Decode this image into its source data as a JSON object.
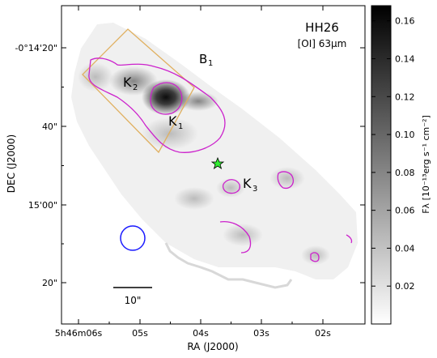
{
  "chart_data": {
    "type": "heatmap",
    "object_name": "HH26",
    "line_label": "[OI] 63μm",
    "xlabel": "RA (J2000)",
    "ylabel": "DEC (J2000)",
    "x_ticks": [
      "5h46m06s",
      "05s",
      "04s",
      "03s",
      "02s"
    ],
    "y_ticks": [
      "-0°14'20\"",
      "40\"",
      "15'00\"",
      "20\""
    ],
    "colorbar": {
      "label": "Fλ [10⁻¹³erg s⁻¹ cm⁻²]",
      "min": 0.0,
      "max": 0.168,
      "ticks": [
        "0.02",
        "0.04",
        "0.06",
        "0.08",
        "0.10",
        "0.12",
        "0.14",
        "0.16"
      ],
      "tick_values": [
        0.02,
        0.04,
        0.06,
        0.08,
        0.1,
        0.12,
        0.14,
        0.16
      ]
    },
    "peak_flux": 0.16,
    "annotations": {
      "knots": [
        {
          "letter": "K",
          "sub": "1"
        },
        {
          "letter": "K",
          "sub": "2"
        },
        {
          "letter": "K",
          "sub": "3"
        }
      ],
      "box_label": {
        "letter": "B",
        "sub": "1"
      },
      "scale_bar": "10\""
    },
    "colors": {
      "contour": "#cc22cc",
      "box": "#e0b060",
      "knot_label": "#1a1aff",
      "beam": "#1a1aff",
      "star": "#33ee33"
    }
  }
}
